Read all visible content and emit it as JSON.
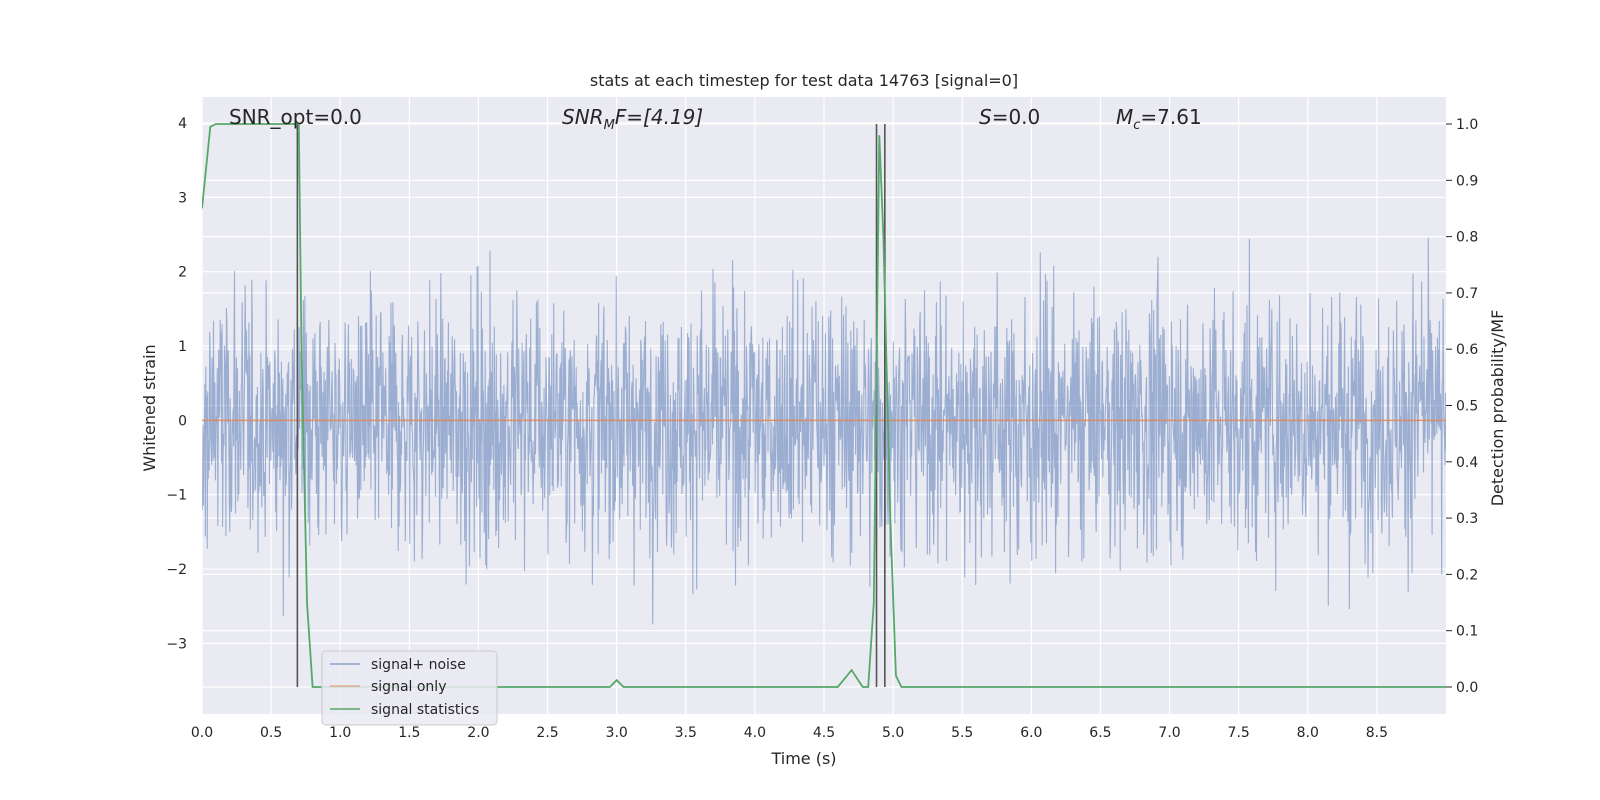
{
  "chart_data": {
    "type": "line",
    "title": "stats at each timestep for test data 14763 [signal=0]",
    "xlabel": "Time (s)",
    "ylabel_left": "Whitened strain",
    "ylabel_right": "Detection probability/MF",
    "xlim": [
      0.0,
      9.0
    ],
    "ylim_left": [
      -3.95,
      4.35
    ],
    "ylim_right": [
      -0.048,
      1.048
    ],
    "xticks": [
      "0.0",
      "0.5",
      "1.0",
      "1.5",
      "2.0",
      "2.5",
      "3.0",
      "3.5",
      "4.0",
      "4.5",
      "5.0",
      "5.5",
      "6.0",
      "6.5",
      "7.0",
      "7.5",
      "8.0",
      "8.5"
    ],
    "xtick_values": [
      0.0,
      0.5,
      1.0,
      1.5,
      2.0,
      2.5,
      3.0,
      3.5,
      4.0,
      4.5,
      5.0,
      5.5,
      6.0,
      6.5,
      7.0,
      7.5,
      8.0,
      8.5
    ],
    "yticks_left": [
      "−3",
      "−2",
      "−1",
      "0",
      "1",
      "2",
      "3",
      "4"
    ],
    "ytick_values_left": [
      -3,
      -2,
      -1,
      0,
      1,
      2,
      3,
      4
    ],
    "yticks_right": [
      "0.0",
      "0.1",
      "0.2",
      "0.3",
      "0.4",
      "0.5",
      "0.6",
      "0.7",
      "0.8",
      "0.9",
      "1.0"
    ],
    "ytick_values_right": [
      0.0,
      0.1,
      0.2,
      0.3,
      0.4,
      0.5,
      0.6,
      0.7,
      0.8,
      0.9,
      1.0
    ],
    "grid": true,
    "legend_position": "bottom-left",
    "series": [
      {
        "name": "signal+ noise",
        "color": "#4c72b0",
        "style": "dense noise, approx. ±2.5 with spikes to ±4"
      },
      {
        "name": "signal only",
        "color": "#dd8452",
        "x": [
          0.0,
          9.0
        ],
        "y": [
          0.0,
          0.0
        ]
      },
      {
        "name": "signal statistics",
        "color": "#55a868",
        "x": [
          0.0,
          0.06,
          0.1,
          0.15,
          0.65,
          0.7,
          0.72,
          0.76,
          0.8,
          0.82,
          1.0,
          2.0,
          2.95,
          3.0,
          3.05,
          3.1,
          3.5,
          4.0,
          4.55,
          4.6,
          4.7,
          4.78,
          4.82,
          4.86,
          4.9,
          4.93,
          4.98,
          5.02,
          5.06,
          5.1,
          6.0,
          7.0,
          8.0,
          9.0
        ],
        "y": [
          0.85,
          0.995,
          1.0,
          1.0,
          1.0,
          1.0,
          0.6,
          0.15,
          0.0,
          0.0,
          0.0,
          0.0,
          0.0,
          0.012,
          0.0,
          0.0,
          0.0,
          0.0,
          0.0,
          0.0,
          0.03,
          0.0,
          0.0,
          0.15,
          0.98,
          0.8,
          0.3,
          0.02,
          0.0,
          0.0,
          0.0,
          0.0,
          0.0,
          0.0
        ]
      }
    ],
    "vlines": [
      0.69,
      4.88,
      4.94
    ],
    "annotations": {
      "snr_opt": "SNR_opt=0.0",
      "snr_mf_base": "SNR",
      "snr_mf_sub": "M",
      "snr_mf_rest": "F=[4.19]",
      "s_label": "S",
      "s_value": "=0.0",
      "mc_base": "M",
      "mc_sub": "c",
      "mc_value": "=7.61"
    },
    "colors": {
      "noise": "#4c72b0",
      "signal": "#dd8452",
      "stats": "#55a868",
      "vline": "#555555",
      "background": "#eaeaf2",
      "grid": "#ffffff"
    }
  }
}
